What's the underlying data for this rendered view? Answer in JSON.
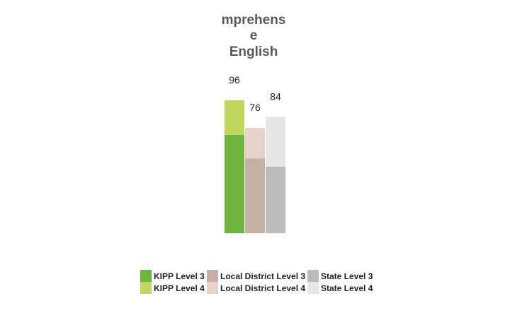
{
  "chart_data": {
    "type": "bar",
    "title_lines": [
      "mprehens",
      "e",
      "English"
    ],
    "stacked": true,
    "categories": [
      "KIPP",
      "Local District",
      "State"
    ],
    "series": [
      {
        "name": "KIPP Level 3",
        "group": "KIPP",
        "level": 3,
        "value": 71,
        "color": "#6db33f"
      },
      {
        "name": "KIPP Level 4",
        "group": "KIPP",
        "level": 4,
        "value": 25,
        "color": "#bfd85c"
      },
      {
        "name": "Local District Level 3",
        "group": "Local District",
        "level": 3,
        "value": 54,
        "color": "#c4b1a3"
      },
      {
        "name": "Local District Level 4",
        "group": "Local District",
        "level": 4,
        "value": 22,
        "color": "#e8d3cb"
      },
      {
        "name": "State Level 3",
        "group": "State",
        "level": 3,
        "value": 48,
        "color": "#bbbbbb"
      },
      {
        "name": "State Level 4",
        "group": "State",
        "level": 4,
        "value": 36,
        "color": "#e6e6e6"
      }
    ],
    "totals": [
      {
        "group": "KIPP",
        "label": "96",
        "value": 96
      },
      {
        "group": "Local District",
        "label": "76",
        "value": 76
      },
      {
        "group": "State",
        "label": "84",
        "value": 84
      }
    ],
    "ylim": [
      0,
      100
    ],
    "grid": false,
    "legend_position": "bottom"
  }
}
